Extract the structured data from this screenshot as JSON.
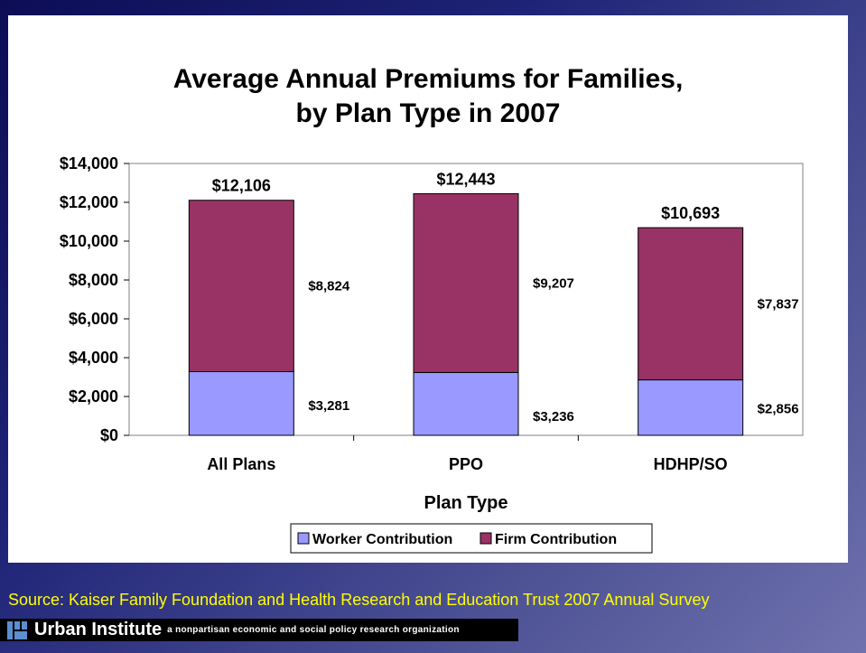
{
  "chart_data": {
    "type": "bar",
    "stacked": true,
    "title_lines": [
      "Average Annual Premiums for Families,",
      "by Plan Type in 2007"
    ],
    "xlabel": "Plan Type",
    "ylabel": "",
    "categories": [
      "All Plans",
      "PPO",
      "HDHP/SO"
    ],
    "series": [
      {
        "name": "Worker Contribution",
        "values": [
          3281,
          3236,
          2856
        ],
        "labels": [
          "$3,281",
          "$3,236",
          "$2,856"
        ],
        "color": "#9999ff"
      },
      {
        "name": "Firm Contribution",
        "values": [
          8824,
          9207,
          7837
        ],
        "labels": [
          "$8,824",
          "$9,207",
          "$7,837"
        ],
        "color": "#993366"
      }
    ],
    "totals": [
      12106,
      12443,
      10693
    ],
    "total_labels": [
      "$12,106",
      "$12,443",
      "$10,693"
    ],
    "ylim": [
      0,
      14000
    ],
    "yticks": [
      0,
      2000,
      4000,
      6000,
      8000,
      10000,
      12000,
      14000
    ],
    "ytick_labels": [
      "$0",
      "$2,000",
      "$4,000",
      "$6,000",
      "$8,000",
      "$10,000",
      "$12,000",
      "$14,000"
    ],
    "grid": false,
    "legend_position": "bottom"
  },
  "source": "Source: Kaiser Family Foundation and Health Research and Education Trust 2007 Annual Survey",
  "footer": {
    "org_name": "Urban Institute",
    "tagline": "a nonpartisan economic and social policy research organization"
  },
  "colors": {
    "background": "#1f2377",
    "source_text": "#ffff00"
  }
}
